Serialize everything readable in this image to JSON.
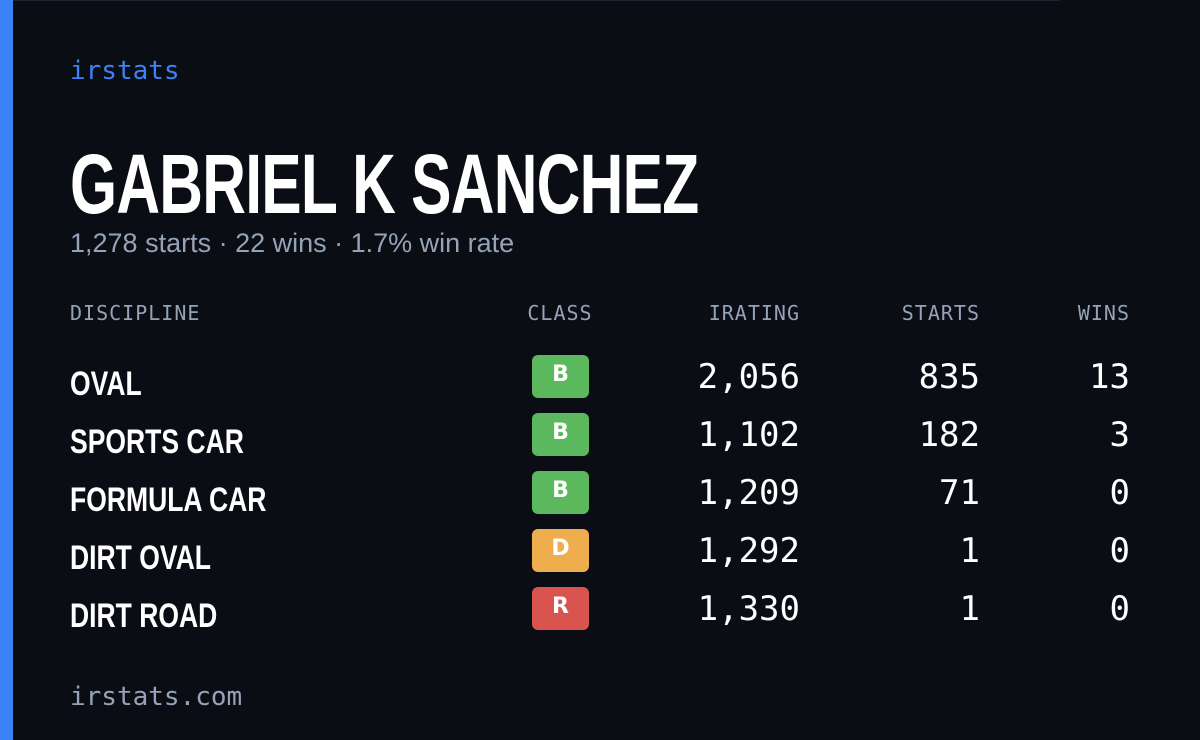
{
  "header": {
    "brand": "irstats",
    "name": "GABRIEL K SANCHEZ",
    "summary": "1,278 starts · 22 wins · 1.7% win rate"
  },
  "table": {
    "columns": [
      "DISCIPLINE",
      "CLASS",
      "IRATING",
      "STARTS",
      "WINS"
    ],
    "rows": [
      {
        "discipline": "OVAL",
        "class": "B",
        "class_color": "#5cb85c",
        "irating": "2,056",
        "starts": 835,
        "wins": 13
      },
      {
        "discipline": "SPORTS CAR",
        "class": "B",
        "class_color": "#5cb85c",
        "irating": "1,102",
        "starts": 182,
        "wins": 3
      },
      {
        "discipline": "FORMULA CAR",
        "class": "B",
        "class_color": "#5cb85c",
        "irating": "1,209",
        "starts": 71,
        "wins": 0
      },
      {
        "discipline": "DIRT OVAL",
        "class": "D",
        "class_color": "#f0ad4e",
        "irating": "1,292",
        "starts": 1,
        "wins": 0
      },
      {
        "discipline": "DIRT ROAD",
        "class": "R",
        "class_color": "#d9534f",
        "irating": "1,330",
        "starts": 1,
        "wins": 0
      }
    ]
  },
  "footer": {
    "url": "irstats.com"
  }
}
